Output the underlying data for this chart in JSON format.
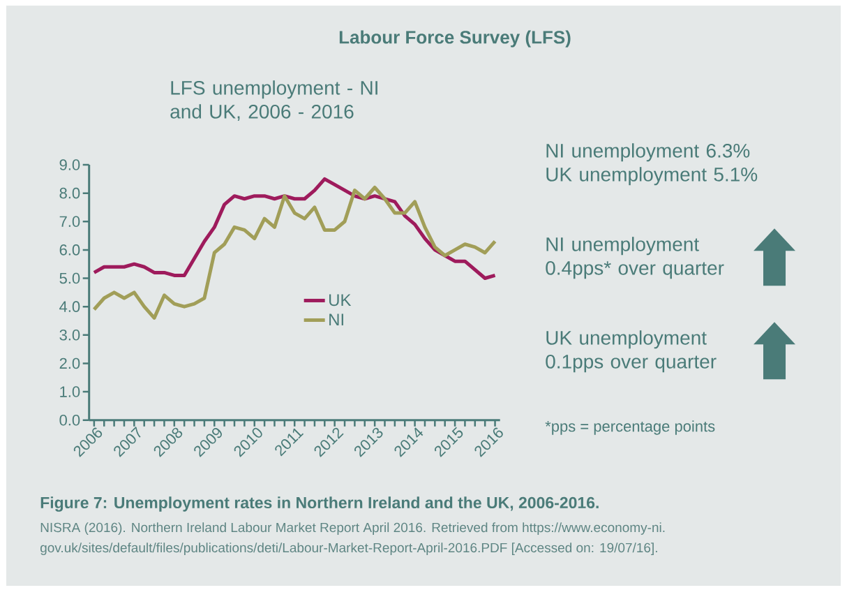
{
  "chart_data": {
    "type": "line",
    "title": "Labour Force Survey (LFS)",
    "subtitle": "LFS unemployment - NI and UK, 2006 - 2016",
    "categories": [
      "2006",
      null,
      null,
      null,
      "2007",
      null,
      null,
      null,
      "2008",
      null,
      null,
      null,
      "2009",
      null,
      null,
      null,
      "2010",
      null,
      null,
      null,
      "2011",
      null,
      null,
      null,
      "2012",
      null,
      null,
      null,
      "2013",
      null,
      null,
      null,
      "2014",
      null,
      null,
      null,
      "2015",
      null,
      null,
      null,
      "2016"
    ],
    "series": [
      {
        "name": "UK",
        "color": "#9e1b5c",
        "values": [
          5.2,
          5.4,
          5.4,
          5.4,
          5.5,
          5.4,
          5.2,
          5.2,
          5.1,
          5.1,
          5.7,
          6.3,
          6.8,
          7.6,
          7.9,
          7.8,
          7.9,
          7.9,
          7.8,
          7.9,
          7.8,
          7.8,
          8.1,
          8.5,
          8.3,
          8.1,
          7.9,
          7.8,
          7.9,
          7.8,
          7.7,
          7.2,
          6.9,
          6.4,
          6.0,
          5.8,
          5.6,
          5.6,
          5.3,
          5.0,
          5.1
        ]
      },
      {
        "name": "NI",
        "color": "#a19e58",
        "values": [
          3.9,
          4.3,
          4.5,
          4.3,
          4.5,
          4.0,
          3.6,
          4.4,
          4.1,
          4.0,
          4.1,
          4.3,
          5.9,
          6.2,
          6.8,
          6.7,
          6.4,
          7.1,
          6.8,
          7.9,
          7.3,
          7.1,
          7.5,
          6.7,
          6.7,
          7.0,
          8.1,
          7.8,
          8.2,
          7.8,
          7.3,
          7.3,
          7.7,
          6.8,
          6.1,
          5.8,
          6.0,
          6.2,
          6.1,
          5.9,
          6.3
        ]
      }
    ],
    "ylim": [
      0,
      9
    ],
    "yticks": [
      {
        "value": 0,
        "label": "0.0"
      },
      {
        "value": 1,
        "label": "1.0"
      },
      {
        "value": 2,
        "label": "2.0"
      },
      {
        "value": 3,
        "label": "3.0"
      },
      {
        "value": 4,
        "label": "4.0"
      },
      {
        "value": 5,
        "label": "5.0"
      },
      {
        "value": 6,
        "label": "6.0"
      },
      {
        "value": 7,
        "label": "7.0"
      },
      {
        "value": 8,
        "label": "8.0"
      },
      {
        "value": 9,
        "label": "9.0"
      }
    ],
    "legend": "center",
    "annotations": [
      "NI unemployment 6.3%",
      "UK unemployment 5.1%",
      "NI unemployment 0.4pps* over quarter",
      "UK unemployment 0.1pps over quarter",
      "*pps = percentage points",
      "Figure 7: Unemployment rates in Northern Ireland and the UK, 2006-2016.",
      "NISRA (2016). Northern Ireland Labour Market Report April 2016. Retrieved from https://www.economy-ni.",
      "gov.uk/sites/default/files/publications/deti/Labour-Market-Report-April-2016.PDF [Accessed on: 19/07/16]."
    ]
  }
}
